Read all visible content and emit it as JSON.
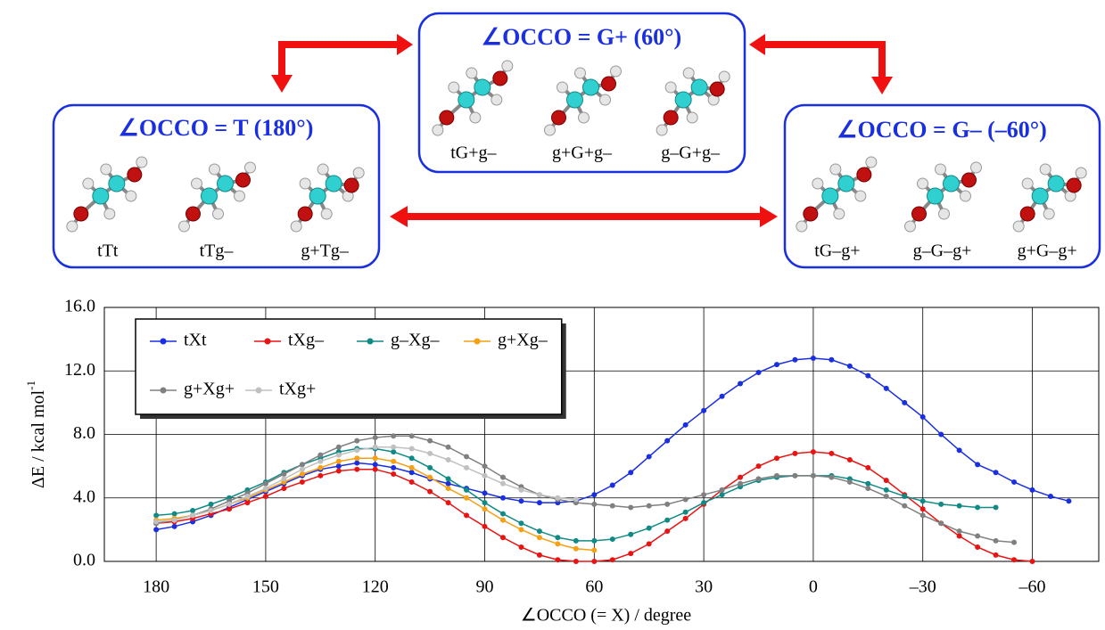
{
  "diagram": {
    "boxes": [
      {
        "title": "∠OCCO = T (180°)",
        "molecules": [
          "tTt",
          "tTg–",
          "g+Tg–"
        ]
      },
      {
        "title": "∠OCCO = G+ (60°)",
        "molecules": [
          "tG+g–",
          "g+G+g–",
          "g–G+g–"
        ]
      },
      {
        "title": "∠OCCO = G– (–60°)",
        "molecules": [
          "tG–g+",
          "g–G–g+",
          "g+G–g+"
        ]
      }
    ]
  },
  "chart_data": {
    "type": "line",
    "x_label": "∠OCCO (= X) / degree",
    "y_label": "ΔE  /  kcal mol",
    "y_label_sup": "-1",
    "x": [
      180,
      175,
      170,
      165,
      160,
      155,
      150,
      145,
      140,
      135,
      130,
      125,
      120,
      115,
      110,
      105,
      100,
      95,
      90,
      85,
      80,
      75,
      70,
      65,
      60,
      55,
      50,
      45,
      40,
      35,
      30,
      25,
      20,
      15,
      10,
      5,
      0,
      -5,
      -10,
      -15,
      -20,
      -25,
      -30,
      -35,
      -40,
      -45,
      -50,
      -55,
      -60,
      -65,
      -70
    ],
    "series": [
      {
        "name": "tXt",
        "color": "#1a2fe0",
        "values": [
          2.0,
          2.2,
          2.5,
          2.9,
          3.4,
          3.9,
          4.4,
          4.9,
          5.4,
          5.8,
          6.0,
          6.2,
          6.1,
          5.9,
          5.6,
          5.2,
          4.9,
          4.6,
          4.3,
          4.0,
          3.8,
          3.7,
          3.7,
          3.8,
          4.2,
          4.8,
          5.6,
          6.6,
          7.6,
          8.6,
          9.5,
          10.4,
          11.2,
          11.9,
          12.4,
          12.7,
          12.8,
          12.7,
          12.3,
          11.7,
          10.9,
          10.0,
          9.1,
          8.0,
          7.0,
          6.1,
          5.6,
          5.0,
          4.5,
          4.1,
          3.8
        ]
      },
      {
        "name": "tXg–",
        "color": "#e81414",
        "values": [
          2.4,
          2.5,
          2.7,
          3.0,
          3.3,
          3.7,
          4.1,
          4.6,
          5.0,
          5.4,
          5.7,
          5.8,
          5.8,
          5.5,
          5.0,
          4.4,
          3.7,
          2.9,
          2.2,
          1.5,
          0.9,
          0.4,
          0.1,
          0.0,
          0.0,
          0.1,
          0.5,
          1.1,
          1.9,
          2.7,
          3.6,
          4.5,
          5.3,
          6.0,
          6.5,
          6.8,
          6.9,
          6.8,
          6.4,
          5.9,
          5.1,
          4.2,
          3.3,
          2.4,
          1.6,
          0.9,
          0.4,
          0.1,
          0.0,
          null,
          null
        ]
      },
      {
        "name": "g–Xg–",
        "color": "#108a84",
        "values": [
          2.9,
          3.0,
          3.2,
          3.6,
          4.0,
          4.5,
          5.0,
          5.6,
          6.1,
          6.5,
          6.9,
          7.1,
          7.1,
          6.9,
          6.5,
          5.9,
          5.2,
          4.5,
          3.7,
          3.0,
          2.4,
          1.9,
          1.5,
          1.3,
          1.3,
          1.4,
          1.7,
          2.1,
          2.6,
          3.1,
          3.7,
          4.2,
          4.7,
          5.1,
          5.3,
          5.4,
          5.4,
          5.4,
          5.2,
          4.9,
          4.5,
          4.1,
          3.8,
          3.6,
          3.5,
          3.4,
          3.4,
          null,
          null,
          null,
          null
        ]
      },
      {
        "name": "g+Xg–",
        "color": "#f5a015",
        "values": [
          2.6,
          2.7,
          2.9,
          3.2,
          3.6,
          4.0,
          4.5,
          5.0,
          5.5,
          5.9,
          6.3,
          6.5,
          6.5,
          6.3,
          5.9,
          5.3,
          4.6,
          4.0,
          3.3,
          2.6,
          2.0,
          1.5,
          1.1,
          0.8,
          0.7,
          null,
          null,
          null,
          null,
          null,
          null,
          null,
          null,
          null,
          null,
          null,
          null,
          null,
          null,
          null,
          null,
          null,
          null,
          null,
          null,
          null,
          null,
          null,
          null,
          null,
          null
        ]
      },
      {
        "name": "g+Xg+",
        "color": "#808080",
        "values": [
          2.4,
          2.6,
          2.9,
          3.3,
          3.8,
          4.3,
          4.9,
          5.5,
          6.1,
          6.7,
          7.2,
          7.6,
          7.8,
          7.9,
          7.9,
          7.6,
          7.2,
          6.6,
          6.0,
          5.3,
          4.7,
          4.2,
          3.9,
          3.7,
          3.6,
          3.5,
          3.4,
          3.5,
          3.6,
          3.9,
          4.2,
          4.5,
          4.9,
          5.2,
          5.4,
          5.4,
          5.4,
          5.3,
          5.0,
          4.6,
          4.1,
          3.5,
          2.9,
          2.4,
          1.9,
          1.6,
          1.3,
          1.2,
          null,
          null,
          null
        ]
      },
      {
        "name": "tXg+",
        "color": "#c0c0c0",
        "values": [
          2.5,
          2.6,
          2.9,
          3.2,
          3.6,
          4.1,
          4.6,
          5.2,
          5.8,
          6.3,
          6.7,
          7.0,
          7.2,
          7.2,
          7.1,
          6.8,
          6.4,
          5.9,
          5.4,
          4.9,
          4.5,
          4.2,
          4.0,
          3.9,
          null,
          null,
          null,
          null,
          null,
          null,
          null,
          null,
          null,
          null,
          null,
          null,
          null,
          null,
          null,
          null,
          null,
          null,
          null,
          null,
          null,
          null,
          null,
          null,
          null,
          null,
          null
        ]
      }
    ],
    "xlim": [
      194.2,
      -78.2
    ],
    "xticks": [
      180,
      150,
      120,
      90,
      60,
      30,
      0,
      {
        "value": -30,
        "label": "–30"
      },
      {
        "value": -60,
        "label": "–60"
      }
    ],
    "ylim": [
      0,
      16
    ],
    "yticks": [
      {
        "value": 0,
        "label": "0.0"
      },
      {
        "value": 4,
        "label": "4.0"
      },
      {
        "value": 8,
        "label": "8.0"
      },
      {
        "value": 12,
        "label": "12.0"
      },
      {
        "value": 16,
        "label": "16.0"
      }
    ],
    "grid": true,
    "legend": "upper left"
  }
}
